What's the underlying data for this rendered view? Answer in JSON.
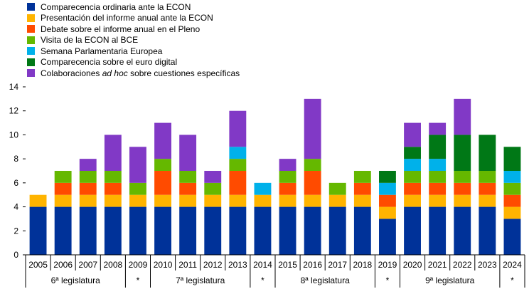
{
  "chart_data": {
    "type": "bar",
    "stacked": true,
    "categories": [
      "2005",
      "2006",
      "2007",
      "2008",
      "2009",
      "2010",
      "2011",
      "2012",
      "2013",
      "2014",
      "2015",
      "2016",
      "2017",
      "2018",
      "2019",
      "2020",
      "2021",
      "2022",
      "2023",
      "2024"
    ],
    "series": [
      {
        "name": "Comparecencia ordinaria ante la ECON",
        "color": "#003299",
        "values": [
          4,
          4,
          4,
          4,
          4,
          4,
          4,
          4,
          4,
          4,
          4,
          4,
          4,
          4,
          3,
          4,
          4,
          4,
          4,
          3
        ]
      },
      {
        "name": "Presentación del informe anual ante la ECON",
        "color": "#FFB400",
        "values": [
          1,
          1,
          1,
          1,
          1,
          1,
          1,
          1,
          1,
          1,
          1,
          1,
          1,
          1,
          1,
          1,
          1,
          1,
          1,
          1
        ]
      },
      {
        "name": "Debate sobre el informe anual en el Pleno",
        "color": "#FF4B00",
        "values": [
          0,
          1,
          1,
          1,
          0,
          2,
          1,
          0,
          2,
          0,
          1,
          2,
          0,
          1,
          1,
          1,
          1,
          1,
          1,
          1
        ]
      },
      {
        "name": "Visita de la ECON al BCE",
        "color": "#65B800",
        "values": [
          0,
          1,
          1,
          1,
          1,
          1,
          1,
          1,
          1,
          0,
          1,
          1,
          1,
          1,
          0,
          1,
          1,
          1,
          1,
          1
        ]
      },
      {
        "name": "Semana Parlamentaria Europea",
        "color": "#00B1EA",
        "values": [
          0,
          0,
          0,
          0,
          0,
          0,
          0,
          0,
          1,
          1,
          0,
          0,
          0,
          0,
          1,
          1,
          1,
          0,
          0,
          1
        ]
      },
      {
        "name": "Comparecencia sobre el euro digital",
        "color": "#007816",
        "values": [
          0,
          0,
          0,
          0,
          0,
          0,
          0,
          0,
          0,
          0,
          0,
          0,
          0,
          0,
          1,
          1,
          2,
          3,
          3,
          2
        ]
      },
      {
        "name": "Colaboraciones ad hoc sobre cuestiones específicas",
        "color": "#8139C6",
        "values": [
          0,
          0,
          1,
          3,
          3,
          3,
          3,
          1,
          3,
          0,
          1,
          5,
          0,
          0,
          0,
          2,
          1,
          3,
          0,
          0
        ]
      }
    ],
    "legend_parts": [
      {
        "pre": "Comparecencia ordinaria ante la ECON",
        "em": "",
        "post": ""
      },
      {
        "pre": "Presentación del informe anual ante la ECON",
        "em": "",
        "post": ""
      },
      {
        "pre": "Debate sobre el informe anual en el Pleno",
        "em": "",
        "post": ""
      },
      {
        "pre": "Visita de la ECON al BCE",
        "em": "",
        "post": ""
      },
      {
        "pre": "Semana Parlamentaria Europea",
        "em": "",
        "post": ""
      },
      {
        "pre": "Comparecencia sobre el euro digital",
        "em": "",
        "post": ""
      },
      {
        "pre": "Colaboraciones ",
        "em": "ad hoc",
        "post": " sobre cuestiones específicas"
      }
    ],
    "ylim": [
      0,
      14
    ],
    "yticks": [
      0,
      2,
      4,
      6,
      8,
      10,
      12,
      14
    ],
    "grid": false,
    "legend_position": "top-left",
    "groups": [
      {
        "label": "6ª legislatura",
        "start": 0,
        "end": 3
      },
      {
        "label": "*",
        "start": 4,
        "end": 4
      },
      {
        "label": "7ª legislatura",
        "start": 5,
        "end": 8
      },
      {
        "label": "*",
        "start": 9,
        "end": 9
      },
      {
        "label": "8ª legislatura",
        "start": 10,
        "end": 13
      },
      {
        "label": "*",
        "start": 14,
        "end": 14
      },
      {
        "label": "9ª legislatura",
        "start": 15,
        "end": 18
      },
      {
        "label": "*",
        "start": 19,
        "end": 19
      }
    ]
  }
}
